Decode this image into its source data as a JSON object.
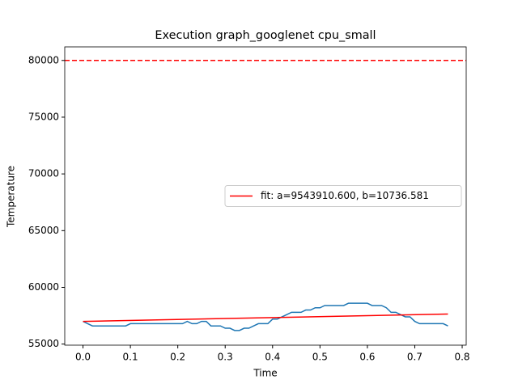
{
  "chart_data": {
    "type": "line",
    "title": "Execution graph_googlenet cpu_small",
    "x_label": "Time",
    "y_label": "Temperature",
    "series": [
      {
        "name": null,
        "color": "#1f77b4",
        "x": [
          0,
          0.01,
          0.02,
          0.03,
          0.04,
          0.05,
          0.06,
          0.07,
          0.08,
          0.09,
          0.1,
          0.11,
          0.12,
          0.13,
          0.14,
          0.15,
          0.16,
          0.17,
          0.18,
          0.19,
          0.2,
          0.21,
          0.22,
          0.23,
          0.24,
          0.25,
          0.26,
          0.27,
          0.28,
          0.29,
          0.3,
          0.31,
          0.32,
          0.33,
          0.34,
          0.35,
          0.36,
          0.37,
          0.38,
          0.39,
          0.4,
          0.41,
          0.42,
          0.43,
          0.44,
          0.45,
          0.46,
          0.47,
          0.48,
          0.49,
          0.5,
          0.51,
          0.52,
          0.53,
          0.54,
          0.55,
          0.56,
          0.57,
          0.58,
          0.59,
          0.6,
          0.61,
          0.62,
          0.63,
          0.64,
          0.65,
          0.66,
          0.67,
          0.68,
          0.69,
          0.7,
          0.71,
          0.72,
          0.73,
          0.74,
          0.75,
          0.76,
          0.77
        ],
        "values": [
          57000,
          56800,
          56600,
          56600,
          56600,
          56600,
          56600,
          56600,
          56600,
          56600,
          56800,
          56800,
          56800,
          56800,
          56800,
          56800,
          56800,
          56800,
          56800,
          56800,
          56800,
          56800,
          57000,
          56800,
          56800,
          57000,
          57000,
          56600,
          56600,
          56600,
          56400,
          56400,
          56200,
          56200,
          56400,
          56400,
          56600,
          56800,
          56800,
          56800,
          57200,
          57200,
          57400,
          57600,
          57800,
          57800,
          57800,
          58000,
          58000,
          58200,
          58200,
          58400,
          58400,
          58400,
          58400,
          58400,
          58600,
          58600,
          58600,
          58600,
          58600,
          58400,
          58400,
          58400,
          58200,
          57800,
          57800,
          57600,
          57400,
          57400,
          57000,
          56800,
          56800,
          56800,
          56800,
          56800,
          56800,
          56600
        ]
      },
      {
        "name": "fit: a=9543910.600, b=10736.581",
        "color": "#ff0000",
        "x": [
          0,
          0.77
        ],
        "values": [
          57000,
          57650
        ]
      }
    ],
    "hline": {
      "value": 80000,
      "color": "#ff0000",
      "style": "dashed"
    },
    "xlim": [
      -0.0385,
      0.8085
    ],
    "ylim": [
      54905,
      81195
    ],
    "xticks": [
      {
        "value": 0,
        "label": "0.0"
      },
      0.1,
      0.2,
      0.3,
      0.4,
      0.5,
      0.6,
      0.7,
      0.8
    ],
    "yticks": [
      55000,
      60000,
      65000,
      70000,
      75000,
      80000
    ],
    "legend": "center right",
    "grid": false
  }
}
